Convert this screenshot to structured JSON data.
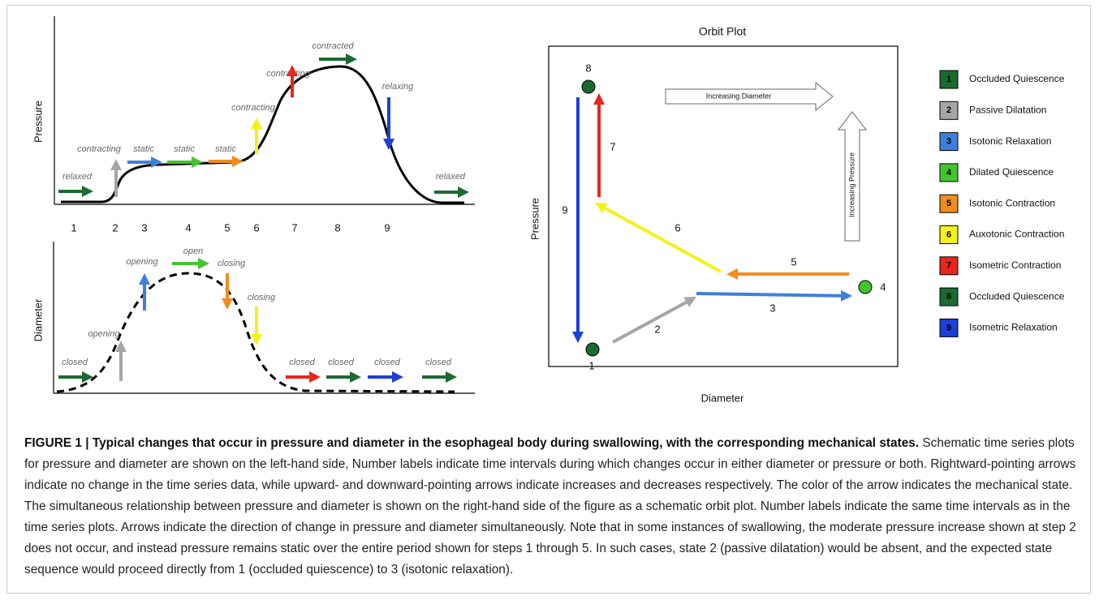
{
  "pressure_plot": {
    "axis_label": "Pressure",
    "annotations": [
      "relaxed",
      "contracting",
      "static",
      "static",
      "static",
      "contracting",
      "contracting",
      "contracted",
      "relaxing",
      "relaxed"
    ],
    "intervals": [
      "1",
      "2",
      "3",
      "4",
      "5",
      "6",
      "7",
      "8",
      "9"
    ]
  },
  "diameter_plot": {
    "axis_label": "Diameter",
    "annotations": [
      "closed",
      "opening",
      "opening",
      "open",
      "closing",
      "closing",
      "closed",
      "closed",
      "closed",
      "closed"
    ]
  },
  "orbit_plot": {
    "title": "Orbit Plot",
    "x_label": "Diameter",
    "y_label": "Pressure",
    "hollow_arrows": [
      "Increasing Diameter",
      "Increasing Pressure"
    ],
    "points": [
      "8",
      "1",
      "4"
    ],
    "steps": [
      "9",
      "7",
      "6",
      "5",
      "3",
      "2"
    ]
  },
  "legend": [
    {
      "number": "1",
      "label": "Occluded Quiescence"
    },
    {
      "number": "2",
      "label": "Passive Dilatation"
    },
    {
      "number": "3",
      "label": "Isotonic Relaxation"
    },
    {
      "number": "4",
      "label": "Dilated Quiescence"
    },
    {
      "number": "5",
      "label": "Isotonic Contraction"
    },
    {
      "number": "6",
      "label": "Auxotonic Contraction"
    },
    {
      "number": "7",
      "label": "Isometric Contraction"
    },
    {
      "number": "8",
      "label": "Occluded Quiescence"
    },
    {
      "number": "9",
      "label": "Isometric Relaxation"
    }
  ],
  "caption": {
    "title": "FIGURE 1 | Typical changes that occur in pressure and diameter in the esophageal body during swallowing, with the corresponding mechanical states.",
    "text": "Schematic time series plots for pressure and diameter are shown on the left-hand side, Number labels indicate time intervals during which changes occur in either diameter or pressure or both. Rightward-pointing arrows indicate no change in the time series data, while upward- and downward-pointing arrows indicate increases and decreases respectively. The color of the arrow indicates the mechanical state. The simultaneous relationship between pressure and diameter is shown on the right-hand side of the figure as a schematic orbit plot. Number labels indicate the same time intervals as in the time series plots. Arrows indicate the direction of change in pressure and diameter simultaneously. Note that in some instances of swallowing, the moderate pressure increase shown at step 2 does not occur, and instead pressure remains static over the entire period shown for steps 1 through 5. In such cases, state 2 (passive dilatation) would be absent, and the expected state sequence would proceed directly from 1 (occluded quiescence) to 3 (isotonic relaxation)."
  }
}
